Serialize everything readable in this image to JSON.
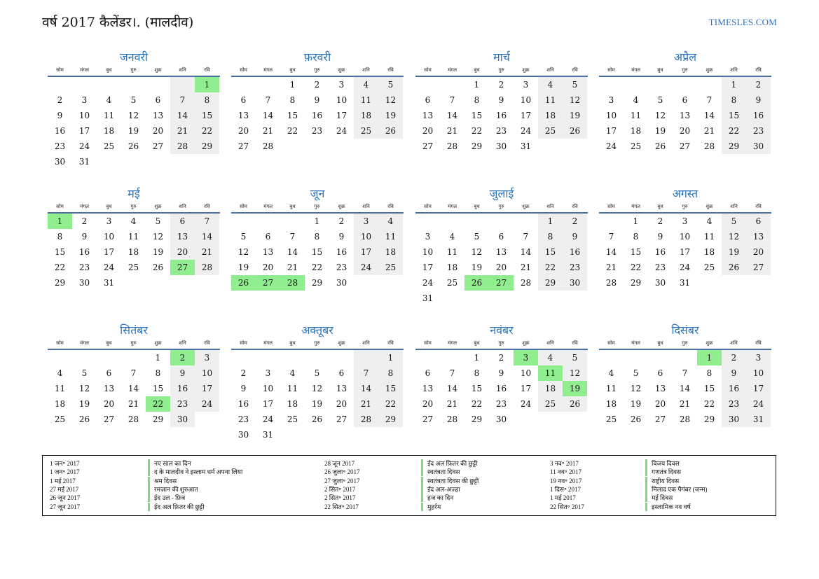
{
  "header": {
    "title": "वर्ष 2017 कैलेंडर।. (मालदीव)",
    "site": "TIMESLES.COM"
  },
  "weekdays": [
    "सोम",
    "मंगल",
    "बुध",
    "गुरु",
    "शुक्र",
    "शनि",
    "रवि"
  ],
  "months": [
    {
      "name": "जनवरी",
      "offset": 6,
      "days": 31,
      "holidays": [
        1
      ]
    },
    {
      "name": "फ़रवरी",
      "offset": 2,
      "days": 28,
      "holidays": []
    },
    {
      "name": "मार्च",
      "offset": 2,
      "days": 31,
      "holidays": []
    },
    {
      "name": "अप्रैल",
      "offset": 5,
      "days": 30,
      "holidays": []
    },
    {
      "name": "मई",
      "offset": 0,
      "days": 31,
      "holidays": [
        1,
        27
      ]
    },
    {
      "name": "जून",
      "offset": 3,
      "days": 30,
      "holidays": [
        26,
        27,
        28
      ]
    },
    {
      "name": "जुलाई",
      "offset": 5,
      "days": 31,
      "holidays": [
        26,
        27
      ]
    },
    {
      "name": "अगस्त",
      "offset": 1,
      "days": 31,
      "holidays": []
    },
    {
      "name": "सितंबर",
      "offset": 4,
      "days": 30,
      "holidays": [
        2,
        22
      ]
    },
    {
      "name": "अक्तूबर",
      "offset": 6,
      "days": 31,
      "holidays": []
    },
    {
      "name": "नवंबर",
      "offset": 2,
      "days": 30,
      "holidays": [
        3,
        11,
        19
      ]
    },
    {
      "name": "दिसंबर",
      "offset": 4,
      "days": 31,
      "holidays": [
        1
      ]
    }
  ],
  "legend": [
    [
      {
        "date": "1 जन॰ 2017",
        "name": "नए साल का दिन"
      },
      {
        "date": "1 जन॰ 2017",
        "name": "द के मालदीव ने इस्लाम धर्म अपना लिया"
      },
      {
        "date": "1 मई 2017",
        "name": "श्रम दिवस"
      },
      {
        "date": "27 मई 2017",
        "name": "रमज़ान की शुरुआत"
      },
      {
        "date": "26 जून 2017",
        "name": "ईद उल - फ़ित्र"
      },
      {
        "date": "27 जून 2017",
        "name": "ईद अल फ़ितर की छुट्टी"
      }
    ],
    [
      {
        "date": "28 जून 2017",
        "name": "ईद अल फ़ितर की छुट्टी"
      },
      {
        "date": "26 जुला॰ 2017",
        "name": "स्वतंत्रता दिवस"
      },
      {
        "date": "27 जुला॰ 2017",
        "name": "स्वतंत्रता दिवस की छुट्टी"
      },
      {
        "date": "2 सित॰ 2017",
        "name": "ईद अल-अज़्हा"
      },
      {
        "date": "2 सित॰ 2017",
        "name": "हज का दिन"
      },
      {
        "date": "22 सित॰ 2017",
        "name": "मुहर्रम"
      }
    ],
    [
      {
        "date": "3 नव॰ 2017",
        "name": "विजय दिवस"
      },
      {
        "date": "11 नव॰ 2017",
        "name": "गणतंत्र दिवस"
      },
      {
        "date": "19 नव॰ 2017",
        "name": "राष्ट्रीय दिवस"
      },
      {
        "date": "1 दिस॰ 2017",
        "name": "मिलाद एक पैगंबर (जन्म)"
      },
      {
        "date": "1 मई 2017",
        "name": "मई दिवस"
      },
      {
        "date": "22 सित॰ 2017",
        "name": "इस्लामिक नव वर्ष"
      }
    ]
  ]
}
